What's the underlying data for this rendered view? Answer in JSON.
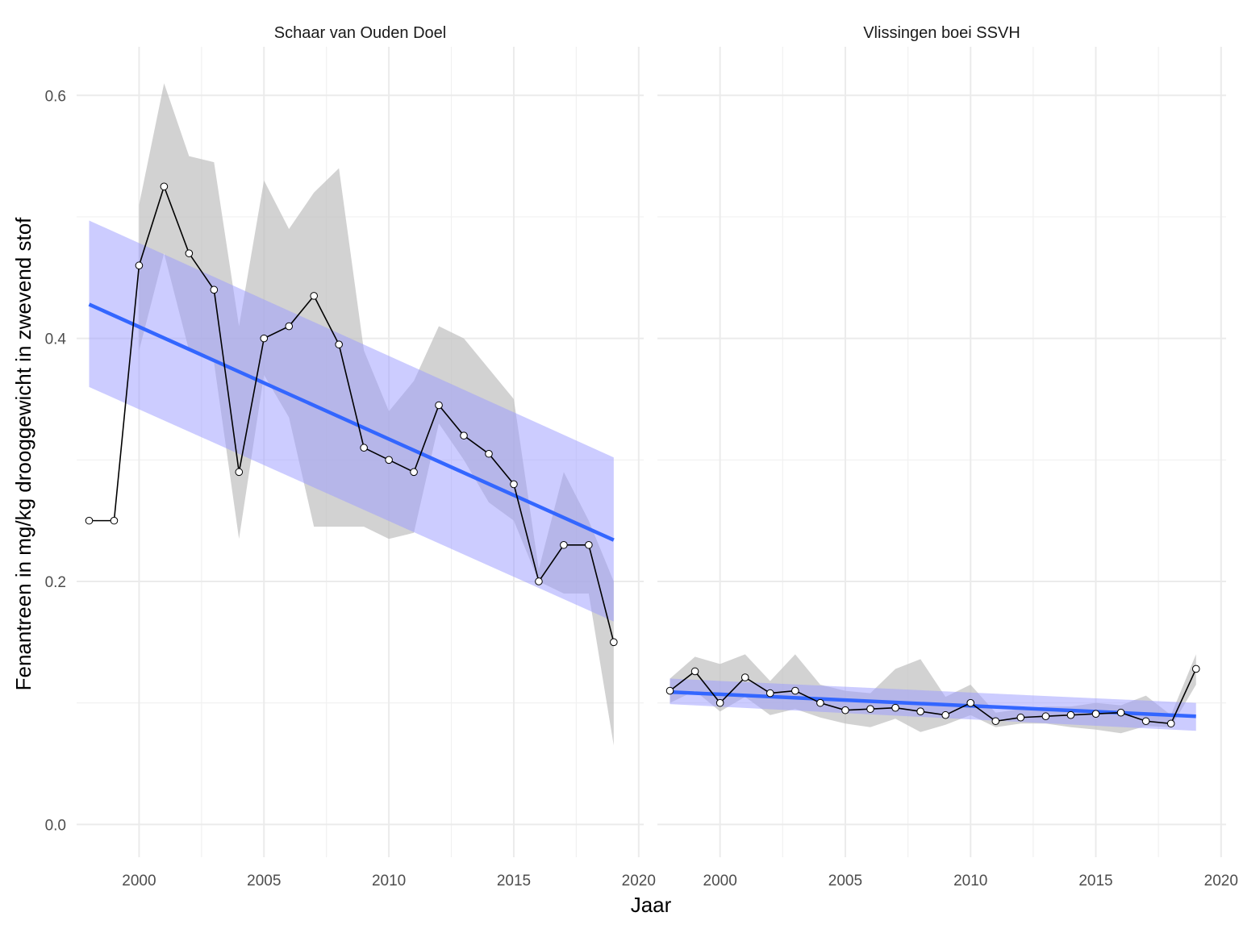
{
  "chart_data": {
    "type": "line",
    "xlabel": "Jaar",
    "ylabel": "Fenantreen in mg/kg drooggewicht in zwevend stof",
    "xlim": [
      1997.5,
      2020.2
    ],
    "ylim": [
      -0.027,
      0.64
    ],
    "x_ticks": [
      2000,
      2005,
      2010,
      2015,
      2020
    ],
    "x_tick_labels": [
      "2000",
      "2005",
      "2010",
      "2015",
      "2020"
    ],
    "y_ticks": [
      0.0,
      0.2,
      0.4,
      0.6
    ],
    "y_tick_labels": [
      "0.0",
      "0.2",
      "0.4",
      "0.6"
    ],
    "grid": true,
    "line_color": "#000000",
    "point_fill": "#ffffff",
    "ribbon_color": "#bfbfbf",
    "trend_color": "#3366ff",
    "trend_band_color": "#9999ff",
    "panels": [
      {
        "title": "Schaar van Ouden Doel",
        "series": [
          {
            "x": [
              1998,
              1999,
              2000,
              2001,
              2002,
              2003,
              2004,
              2005,
              2006,
              2007,
              2008,
              2009,
              2010,
              2011,
              2012,
              2013,
              2014,
              2015,
              2016,
              2017,
              2018,
              2019
            ],
            "y": [
              0.25,
              0.25,
              0.46,
              0.525,
              0.47,
              0.44,
              0.29,
              0.4,
              0.41,
              0.435,
              0.395,
              0.31,
              0.3,
              0.29,
              0.345,
              0.32,
              0.305,
              0.28,
              0.2,
              0.23,
              0.23,
              0.15
            ],
            "lower": [
              null,
              null,
              0.39,
              0.47,
              0.39,
              0.38,
              0.235,
              0.37,
              0.335,
              0.245,
              0.245,
              0.245,
              0.235,
              0.24,
              0.33,
              0.3,
              0.265,
              0.25,
              0.2,
              0.19,
              0.19,
              0.065
            ],
            "upper": [
              null,
              null,
              0.51,
              0.61,
              0.55,
              0.545,
              0.41,
              0.53,
              0.49,
              0.52,
              0.54,
              0.39,
              0.34,
              0.365,
              0.41,
              0.4,
              0.375,
              0.35,
              0.21,
              0.29,
              0.25,
              0.2
            ]
          }
        ],
        "trend": {
          "x": [
            1998,
            2019
          ],
          "y": [
            0.428,
            0.234
          ],
          "lower": [
            0.36,
            0.167
          ],
          "upper": [
            0.497,
            0.302
          ]
        }
      },
      {
        "title": "Vlissingen boei SSVH",
        "series": [
          {
            "x": [
              1998,
              1999,
              2000,
              2001,
              2002,
              2003,
              2004,
              2005,
              2006,
              2007,
              2008,
              2009,
              2010,
              2011,
              2012,
              2013,
              2014,
              2015,
              2016,
              2017,
              2018,
              2019
            ],
            "y": [
              0.11,
              0.126,
              0.1,
              0.121,
              0.108,
              0.11,
              0.1,
              0.094,
              0.095,
              0.096,
              0.093,
              0.09,
              0.1,
              0.085,
              0.088,
              0.089,
              0.09,
              0.091,
              0.092,
              0.085,
              0.083,
              0.128
            ],
            "lower": [
              0.1,
              0.11,
              0.093,
              0.105,
              0.09,
              0.095,
              0.088,
              0.083,
              0.08,
              0.087,
              0.076,
              0.082,
              0.09,
              0.08,
              0.083,
              0.083,
              0.08,
              0.078,
              0.075,
              0.081,
              0.08,
              0.115
            ],
            "upper": [
              0.12,
              0.138,
              0.132,
              0.14,
              0.118,
              0.14,
              0.115,
              0.11,
              0.108,
              0.128,
              0.136,
              0.105,
              0.115,
              0.092,
              0.095,
              0.097,
              0.097,
              0.1,
              0.098,
              0.106,
              0.09,
              0.14
            ]
          }
        ],
        "trend": {
          "x": [
            1998,
            2019
          ],
          "y": [
            0.109,
            0.089
          ],
          "lower": [
            0.099,
            0.077
          ],
          "upper": [
            0.12,
            0.1
          ]
        }
      }
    ]
  }
}
